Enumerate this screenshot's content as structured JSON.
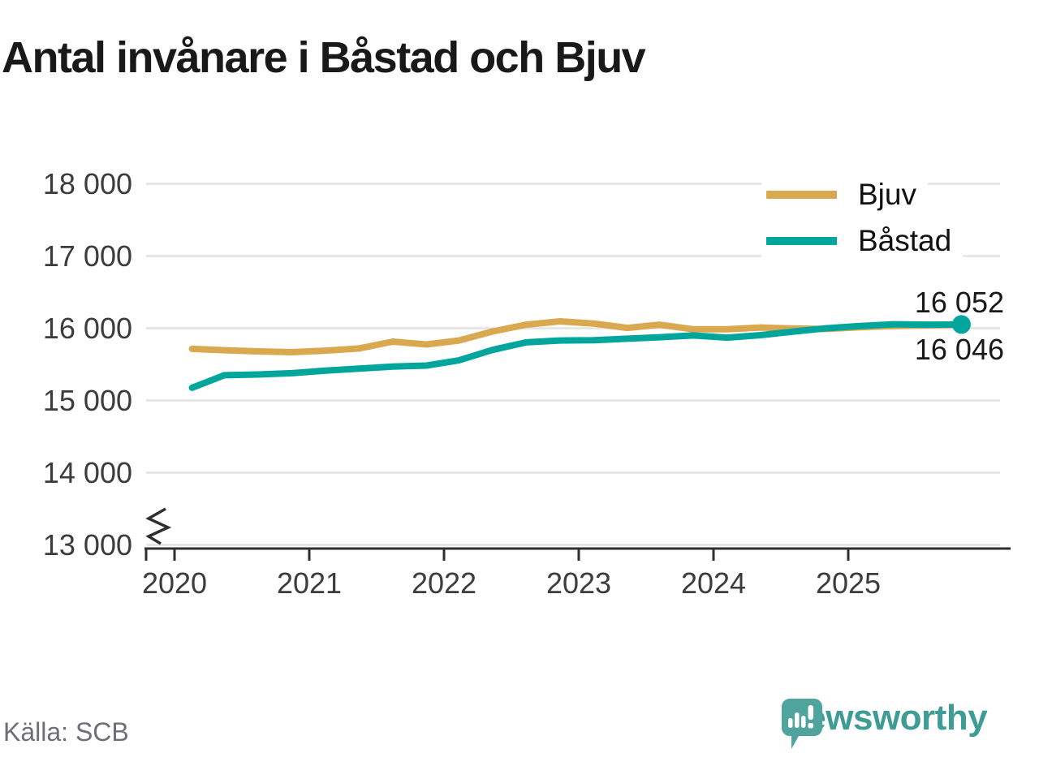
{
  "title": "Antal invånare i Båstad och Bjuv",
  "source": "Källa: SCB",
  "branding": {
    "name": "Newsworthy",
    "text_color": "#3E9C95",
    "icon_color": "#4FA59E",
    "icon": "newsworthy-speech-bubble-chart-icon"
  },
  "legend": [
    {
      "label": "Bjuv",
      "color": "#D9A84F"
    },
    {
      "label": "Båstad",
      "color": "#00A69B"
    }
  ],
  "annotations": {
    "bastad_end_label": "16 052",
    "bjuv_end_label": "16 046"
  },
  "axes": {
    "y_tick_labels": [
      "18 000",
      "17 000",
      "16 000",
      "15 000",
      "14 000",
      "13 000"
    ],
    "x_tick_labels": [
      "2020",
      "2021",
      "2022",
      "2023",
      "2024",
      "2025"
    ],
    "has_y_axis_break": true
  },
  "colors": {
    "gridline": "#e3e3e3",
    "axis": "#2f2f2f",
    "text_dark": "#191919",
    "tick_text": "#3c3c3c",
    "source_text": "#6e6e78"
  },
  "chart_data": {
    "type": "line",
    "title": "Antal invånare i Båstad och Bjuv",
    "xlabel": "",
    "ylabel": "",
    "ylim": [
      13000,
      18000
    ],
    "xlim": [
      2020,
      2026
    ],
    "y_axis_break": true,
    "grid": "horizontal",
    "legend_position": "top-right",
    "x": [
      2020.13,
      2020.37,
      2020.62,
      2020.87,
      2021.12,
      2021.37,
      2021.62,
      2021.87,
      2022.11,
      2022.36,
      2022.61,
      2022.86,
      2023.11,
      2023.36,
      2023.6,
      2023.85,
      2024.1,
      2024.35,
      2024.6,
      2024.84,
      2025.09,
      2025.34,
      2025.59,
      2025.84
    ],
    "series": [
      {
        "name": "Bjuv",
        "color": "#D9A84F",
        "end_value": 16046,
        "values": [
          15715,
          15695,
          15680,
          15668,
          15690,
          15720,
          15815,
          15775,
          15830,
          15955,
          16050,
          16095,
          16065,
          16005,
          16050,
          15985,
          15985,
          16010,
          15995,
          15990,
          16015,
          16030,
          16040,
          16046
        ]
      },
      {
        "name": "Båstad",
        "color": "#00A69B",
        "end_value": 16052,
        "end_dot": true,
        "values": [
          15175,
          15350,
          15360,
          15378,
          15412,
          15440,
          15470,
          15483,
          15555,
          15700,
          15805,
          15830,
          15835,
          15855,
          15875,
          15900,
          15870,
          15905,
          15955,
          16000,
          16030,
          16055,
          16050,
          16052
        ]
      }
    ]
  }
}
